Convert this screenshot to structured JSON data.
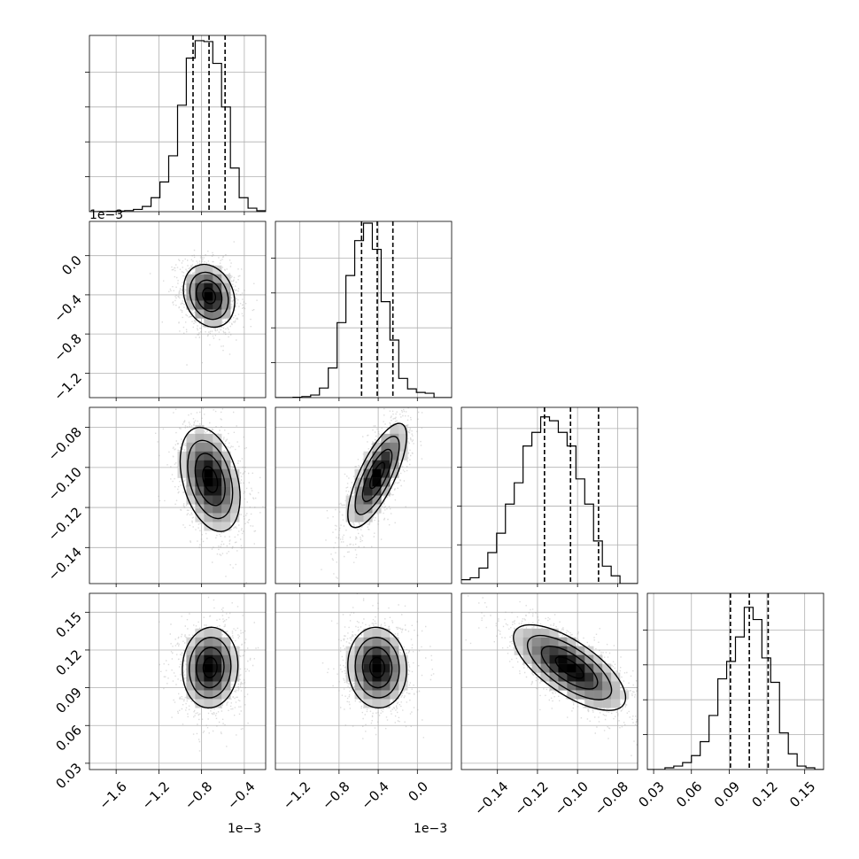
{
  "chart_data": {
    "type": "corner",
    "parameters": 4,
    "grid": true,
    "marginals": [
      {
        "param": 0,
        "xlim": [
          -1.85,
          -0.2
        ],
        "exponent": "1e−3",
        "edges": [
          -1.85,
          -1.768,
          -1.685,
          -1.603,
          -1.52,
          -1.438,
          -1.355,
          -1.273,
          -1.19,
          -1.108,
          -1.025,
          -0.943,
          -0.86,
          -0.778,
          -0.695,
          -0.613,
          -0.53,
          -0.448,
          -0.365,
          -0.283,
          -0.2
        ],
        "counts": [
          0,
          1,
          2,
          3,
          6,
          13,
          30,
          80,
          170,
          320,
          610,
          880,
          980,
          975,
          850,
          600,
          250,
          80,
          20,
          5
        ],
        "quantiles": [
          -0.88,
          -0.73,
          -0.58
        ],
        "ymax": 1000
      },
      {
        "param": 1,
        "xlim": [
          -1.45,
          0.35
        ],
        "exponent": "1e−3",
        "edges": [
          -1.45,
          -1.36,
          -1.27,
          -1.18,
          -1.09,
          -1.0,
          -0.91,
          -0.82,
          -0.73,
          -0.64,
          -0.55,
          -0.46,
          -0.37,
          -0.28,
          -0.19,
          -0.1,
          -0.01,
          0.08,
          0.17,
          0.26,
          0.35
        ],
        "counts": [
          0,
          0,
          2,
          6,
          15,
          55,
          170,
          430,
          700,
          900,
          1000,
          850,
          550,
          330,
          110,
          50,
          30,
          25,
          0,
          0
        ],
        "quantiles": [
          -0.57,
          -0.41,
          -0.25
        ],
        "ymax": 1000
      },
      {
        "param": 2,
        "xlim": [
          -0.158,
          -0.07
        ],
        "edges": [
          -0.158,
          -0.1536,
          -0.1492,
          -0.1448,
          -0.1404,
          -0.136,
          -0.1316,
          -0.1272,
          -0.1228,
          -0.1184,
          -0.114,
          -0.1096,
          -0.1052,
          -0.1008,
          -0.0964,
          -0.092,
          -0.0876,
          -0.0832,
          -0.0788,
          -0.0744,
          -0.07
        ],
        "counts": [
          20,
          30,
          80,
          160,
          260,
          410,
          520,
          710,
          780,
          860,
          840,
          780,
          710,
          540,
          410,
          220,
          90,
          40,
          0,
          0
        ],
        "quantiles": [
          -0.1165,
          -0.1035,
          -0.0895
        ],
        "ymax": 900
      },
      {
        "param": 3,
        "xlim": [
          0.025,
          0.165
        ],
        "edges": [
          0.025,
          0.032,
          0.039,
          0.046,
          0.053,
          0.06,
          0.067,
          0.074,
          0.081,
          0.088,
          0.095,
          0.102,
          0.109,
          0.116,
          0.123,
          0.13,
          0.137,
          0.144,
          0.151,
          0.158,
          0.165
        ],
        "counts": [
          0,
          0,
          10,
          20,
          40,
          80,
          160,
          310,
          520,
          620,
          760,
          930,
          860,
          640,
          500,
          210,
          90,
          20,
          10,
          0
        ],
        "quantiles": [
          0.091,
          0.106,
          0.121
        ],
        "ymax": 1000
      }
    ],
    "tick_labels": {
      "x0": [
        "−1.6",
        "−1.2",
        "−0.8",
        "−0.4"
      ],
      "x1": [
        "−1.2",
        "−0.8",
        "−0.4",
        "0.0"
      ],
      "x2": [
        "−0.14",
        "−0.12",
        "−0.10",
        "−0.08"
      ],
      "x3": [
        "0.03",
        "0.06",
        "0.09",
        "0.12",
        "0.15"
      ],
      "y1": [
        "0.0",
        "−0.4",
        "−0.8",
        "−1.2"
      ],
      "y2": [
        "−0.08",
        "−0.10",
        "−0.12",
        "−0.14"
      ],
      "y3": [
        "0.15",
        "0.12",
        "0.09",
        "0.06",
        "0.03"
      ]
    },
    "tick_values": {
      "x0": [
        -1.6,
        -1.2,
        -0.8,
        -0.4
      ],
      "x1": [
        -1.2,
        -0.8,
        -0.4,
        0.0
      ],
      "x2": [
        -0.14,
        -0.12,
        -0.1,
        -0.08
      ],
      "x3": [
        0.03,
        0.06,
        0.09,
        0.12,
        0.15
      ],
      "y1": [
        0.0,
        -0.4,
        -0.8,
        -1.2
      ],
      "y2": [
        -0.08,
        -0.1,
        -0.12,
        -0.14
      ],
      "y3": [
        0.15,
        0.12,
        0.09,
        0.06,
        0.03
      ]
    },
    "pairs": [
      {
        "x": 0,
        "y": 1,
        "center": [
          -0.73,
          -0.41
        ],
        "sd": [
          0.12,
          0.16
        ],
        "rho": -0.2
      },
      {
        "x": 0,
        "y": 2,
        "center": [
          -0.72,
          -0.106
        ],
        "sd": [
          0.14,
          0.013
        ],
        "rho": -0.35
      },
      {
        "x": 1,
        "y": 2,
        "center": [
          -0.41,
          -0.104
        ],
        "sd": [
          0.15,
          0.013
        ],
        "rho": 0.75
      },
      {
        "x": 0,
        "y": 3,
        "center": [
          -0.72,
          0.106
        ],
        "sd": [
          0.13,
          0.016
        ],
        "rho": 0.05
      },
      {
        "x": 1,
        "y": 3,
        "center": [
          -0.41,
          0.106
        ],
        "sd": [
          0.15,
          0.016
        ],
        "rho": -0.05
      },
      {
        "x": 2,
        "y": 3,
        "center": [
          -0.104,
          0.106
        ],
        "sd": [
          0.014,
          0.017
        ],
        "rho": -0.7
      }
    ]
  }
}
